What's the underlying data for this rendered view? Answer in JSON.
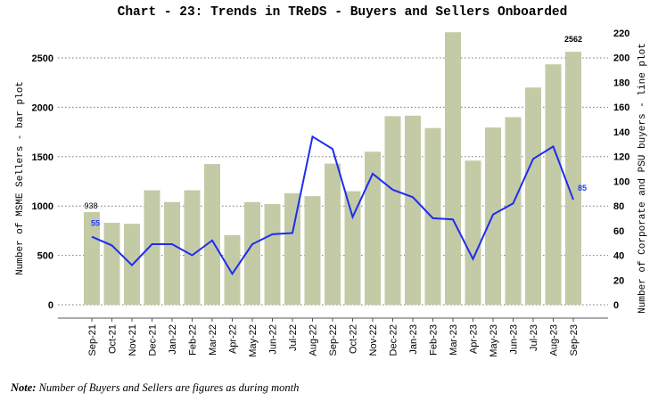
{
  "chart_data": {
    "type": "bar+line",
    "title": "Chart - 23: Trends in TReDS - Buyers and Sellers Onboarded",
    "ylabel_left": "Number of MSME Sellers - bar plot",
    "ylabel_right": "Number of Corporate and PSU buyers - line plot",
    "categories": [
      "Sep-21",
      "Oct-21",
      "Nov-21",
      "Dec-21",
      "Jan-22",
      "Feb-22",
      "Mar-22",
      "Apr-22",
      "May-22",
      "Jun-22",
      "Jul-22",
      "Aug-22",
      "Sep-22",
      "Oct-22",
      "Nov-22",
      "Dec-22",
      "Jan-23",
      "Feb-23",
      "Mar-23",
      "Apr-23",
      "May-23",
      "Jun-23",
      "Jul-23",
      "Aug-23",
      "Sep-23"
    ],
    "bar_values": [
      938,
      830,
      820,
      1160,
      1040,
      1160,
      1425,
      705,
      1040,
      1020,
      1130,
      1100,
      1430,
      1150,
      1550,
      1910,
      1915,
      1790,
      2760,
      1460,
      1795,
      1900,
      2200,
      2435,
      2562
    ],
    "line_values": [
      55,
      48,
      32,
      49,
      49,
      40,
      52,
      25,
      49,
      57,
      58,
      136,
      126,
      71,
      106,
      93,
      87,
      70,
      69,
      37,
      73,
      82,
      118,
      128,
      85
    ],
    "ylim_left": [
      0,
      2750
    ],
    "ylim_right": [
      0,
      220
    ],
    "yticks_left": [
      "0",
      "500",
      "1000",
      "1500",
      "2000",
      "2500"
    ],
    "yticks_right": [
      "0",
      "20",
      "40",
      "60",
      "80",
      "100",
      "120",
      "140",
      "160",
      "180",
      "200",
      "220"
    ],
    "bar_labels": {
      "first": "938",
      "last": "2562"
    },
    "line_labels": {
      "first": "55",
      "last": "85"
    },
    "grid": true,
    "colors": {
      "bar": "#c3cba6",
      "line": "#1f2cf0",
      "line_label": "#2a3cf0"
    }
  },
  "note": {
    "prefix": "Note:",
    "text": " Number of Buyers and Sellers are figures as during month"
  }
}
